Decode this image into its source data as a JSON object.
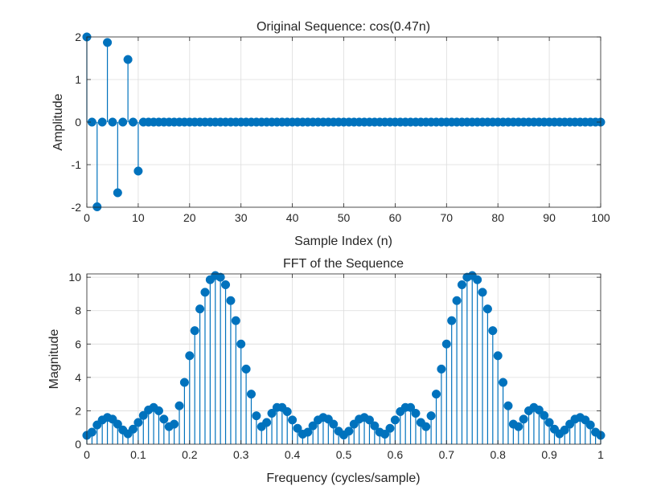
{
  "chart_data": [
    {
      "type": "stem",
      "title": "Original Sequence: cos(0.47n)",
      "xlabel": "Sample Index (n)",
      "ylabel": "Amplitude",
      "xlim": [
        0,
        100
      ],
      "ylim": [
        -2,
        2
      ],
      "xticks": [
        "0",
        "10",
        "20",
        "30",
        "40",
        "50",
        "60",
        "70",
        "80",
        "90",
        "100"
      ],
      "yticks": [
        "-2",
        "-1",
        "0",
        "1",
        "2"
      ],
      "grid": true,
      "color": "#0072BD",
      "series": [
        {
          "x": [
            0,
            1,
            2,
            3,
            4,
            5,
            6,
            7,
            8,
            9,
            10,
            11,
            12,
            13,
            14,
            15,
            16,
            17,
            18,
            19,
            20,
            21,
            22,
            23,
            24,
            25,
            26,
            27,
            28,
            29,
            30,
            31,
            32,
            33,
            34,
            35,
            36,
            37,
            38,
            39,
            40,
            41,
            42,
            43,
            44,
            45,
            46,
            47,
            48,
            49,
            50,
            51,
            52,
            53,
            54,
            55,
            56,
            57,
            58,
            59,
            60,
            61,
            62,
            63,
            64,
            65,
            66,
            67,
            68,
            69,
            70,
            71,
            72,
            73,
            74,
            75,
            76,
            77,
            78,
            79,
            80,
            81,
            82,
            83,
            84,
            85,
            86,
            87,
            88,
            89,
            90,
            91,
            92,
            93,
            94,
            95,
            96,
            97,
            98,
            99,
            100
          ],
          "y": [
            2,
            0,
            -1.99,
            0,
            1.87,
            0,
            -1.66,
            0,
            1.47,
            0,
            -1.15,
            0,
            0,
            0,
            0,
            0,
            0,
            0,
            0,
            0,
            0,
            0,
            0,
            0,
            0,
            0,
            0,
            0,
            0,
            0,
            0,
            0,
            0,
            0,
            0,
            0,
            0,
            0,
            0,
            0,
            0,
            0,
            0,
            0,
            0,
            0,
            0,
            0,
            0,
            0,
            0,
            0,
            0,
            0,
            0,
            0,
            0,
            0,
            0,
            0,
            0,
            0,
            0,
            0,
            0,
            0,
            0,
            0,
            0,
            0,
            0,
            0,
            0,
            0,
            0,
            0,
            0,
            0,
            0,
            0,
            0,
            0,
            0,
            0,
            0,
            0,
            0,
            0,
            0,
            0,
            0,
            0,
            0,
            0,
            0,
            0,
            0,
            0,
            0,
            0,
            0
          ]
        }
      ]
    },
    {
      "type": "stem",
      "title": "FFT of the Sequence",
      "xlabel": "Frequency (cycles/sample)",
      "ylabel": "Magnitude",
      "xlim": [
        0,
        1
      ],
      "ylim": [
        0,
        10.2
      ],
      "xticks": [
        "0",
        "0.1",
        "0.2",
        "0.3",
        "0.4",
        "0.5",
        "0.6",
        "0.7",
        "0.8",
        "0.9",
        "1"
      ],
      "yticks": [
        "0",
        "2",
        "4",
        "6",
        "8",
        "10"
      ],
      "grid": true,
      "color": "#0072BD",
      "series": [
        {
          "x": [
            0,
            0.01,
            0.02,
            0.03,
            0.04,
            0.05,
            0.06,
            0.07,
            0.08,
            0.09,
            0.1,
            0.11,
            0.12,
            0.13,
            0.14,
            0.15,
            0.16,
            0.17,
            0.18,
            0.19,
            0.2,
            0.21,
            0.22,
            0.23,
            0.24,
            0.25,
            0.26,
            0.27,
            0.28,
            0.29,
            0.3,
            0.31,
            0.32,
            0.33,
            0.34,
            0.35,
            0.36,
            0.37,
            0.38,
            0.39,
            0.4,
            0.41,
            0.42,
            0.43,
            0.44,
            0.45,
            0.46,
            0.47,
            0.48,
            0.49,
            0.5,
            0.51,
            0.52,
            0.53,
            0.54,
            0.55,
            0.56,
            0.57,
            0.58,
            0.59,
            0.6,
            0.61,
            0.62,
            0.63,
            0.64,
            0.65,
            0.66,
            0.67,
            0.68,
            0.69,
            0.7,
            0.71,
            0.72,
            0.73,
            0.74,
            0.75,
            0.76,
            0.77,
            0.78,
            0.79,
            0.8,
            0.81,
            0.82,
            0.83,
            0.84,
            0.85,
            0.86,
            0.87,
            0.88,
            0.89,
            0.9,
            0.91,
            0.92,
            0.93,
            0.94,
            0.95,
            0.96,
            0.97,
            0.98,
            0.99,
            1
          ],
          "y": [
            0.53,
            0.72,
            1.15,
            1.45,
            1.6,
            1.5,
            1.2,
            0.85,
            0.62,
            0.9,
            1.3,
            1.72,
            2.05,
            2.2,
            2.0,
            1.5,
            1.05,
            1.2,
            2.3,
            3.7,
            5.3,
            6.8,
            8.1,
            9.1,
            9.85,
            10.1,
            10.0,
            9.55,
            8.6,
            7.4,
            6.0,
            4.5,
            3.0,
            1.7,
            1.05,
            1.3,
            1.85,
            2.2,
            2.2,
            1.95,
            1.45,
            0.95,
            0.6,
            0.72,
            1.1,
            1.45,
            1.6,
            1.5,
            1.2,
            0.78,
            0.55,
            0.78,
            1.2,
            1.5,
            1.6,
            1.45,
            1.1,
            0.72,
            0.6,
            0.95,
            1.45,
            1.95,
            2.2,
            2.2,
            1.85,
            1.3,
            1.05,
            1.7,
            3.0,
            4.5,
            6.0,
            7.4,
            8.6,
            9.55,
            10.0,
            10.1,
            9.85,
            9.1,
            8.1,
            6.8,
            5.3,
            3.7,
            2.3,
            1.2,
            1.05,
            1.5,
            2.0,
            2.2,
            2.05,
            1.72,
            1.3,
            0.9,
            0.62,
            0.85,
            1.2,
            1.5,
            1.6,
            1.45,
            1.15,
            0.72,
            0.53
          ]
        }
      ]
    }
  ]
}
